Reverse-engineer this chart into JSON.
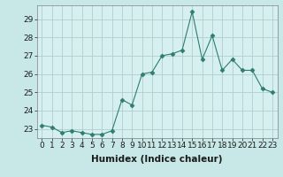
{
  "x": [
    0,
    1,
    2,
    3,
    4,
    5,
    6,
    7,
    8,
    9,
    10,
    11,
    12,
    13,
    14,
    15,
    16,
    17,
    18,
    19,
    20,
    21,
    22,
    23
  ],
  "y": [
    23.2,
    23.1,
    22.8,
    22.9,
    22.8,
    22.7,
    22.7,
    22.9,
    24.6,
    24.3,
    26.0,
    26.1,
    27.0,
    27.1,
    27.3,
    29.4,
    26.8,
    28.1,
    26.2,
    26.8,
    26.2,
    26.2,
    25.2,
    25.0
  ],
  "line_color": "#2e7d6e",
  "marker": "D",
  "marker_size": 2.5,
  "bg_color": "#c8e8e8",
  "plot_bg_color": "#d6efef",
  "grid_color": "#b0cece",
  "xlabel": "Humidex (Indice chaleur)",
  "ylim": [
    22.5,
    29.75
  ],
  "xlim": [
    -0.5,
    23.5
  ],
  "yticks": [
    23,
    24,
    25,
    26,
    27,
    28,
    29
  ],
  "xticks": [
    0,
    1,
    2,
    3,
    4,
    5,
    6,
    7,
    8,
    9,
    10,
    11,
    12,
    13,
    14,
    15,
    16,
    17,
    18,
    19,
    20,
    21,
    22,
    23
  ],
  "tick_label_size": 6.5,
  "xlabel_size": 7.5
}
